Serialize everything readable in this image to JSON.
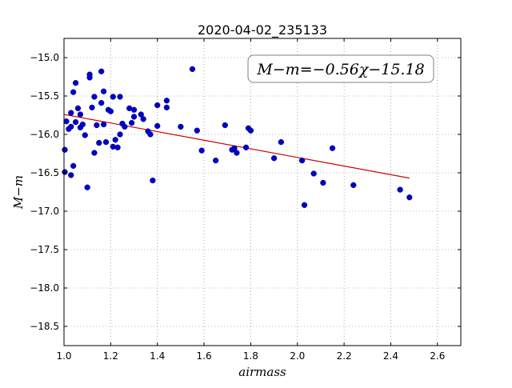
{
  "chart_data": {
    "type": "scatter",
    "title": "2020-04-02_235133",
    "xlabel": "airmass",
    "ylabel": "M−m",
    "xlim": [
      1.0,
      2.7
    ],
    "ylim": [
      -18.75,
      -14.75
    ],
    "y_inverted": true,
    "grid": true,
    "x_ticks": [
      "1.0",
      "1.2",
      "1.4",
      "1.6",
      "1.8",
      "2.0",
      "2.2",
      "2.4",
      "2.6"
    ],
    "x_tick_values": [
      1.0,
      1.2,
      1.4,
      1.6,
      1.8,
      2.0,
      2.2,
      2.4,
      2.6
    ],
    "y_ticks": [
      "−15.0",
      "−15.5",
      "−16.0",
      "−16.5",
      "−17.0",
      "−17.5",
      "−18.0",
      "−18.5"
    ],
    "y_tick_values": [
      -15.0,
      -15.5,
      -16.0,
      -16.5,
      -17.0,
      -17.5,
      -18.0,
      -18.5
    ],
    "annotation": "M−m=−0.56χ−15.18",
    "fit": {
      "slope": -0.56,
      "intercept": -15.18,
      "x_range": [
        1.0,
        2.48
      ],
      "color": "#cc0000"
    },
    "points_color": "#0000cc",
    "points": [
      {
        "x": 1.0,
        "y": -16.2
      },
      {
        "x": 1.0,
        "y": -16.49
      },
      {
        "x": 1.01,
        "y": -15.83
      },
      {
        "x": 1.02,
        "y": -15.93
      },
      {
        "x": 1.03,
        "y": -16.53
      },
      {
        "x": 1.03,
        "y": -15.72
      },
      {
        "x": 1.03,
        "y": -15.9
      },
      {
        "x": 1.04,
        "y": -15.45
      },
      {
        "x": 1.04,
        "y": -16.41
      },
      {
        "x": 1.05,
        "y": -15.33
      },
      {
        "x": 1.05,
        "y": -15.84
      },
      {
        "x": 1.06,
        "y": -15.66
      },
      {
        "x": 1.07,
        "y": -15.74
      },
      {
        "x": 1.07,
        "y": -15.91
      },
      {
        "x": 1.08,
        "y": -15.87
      },
      {
        "x": 1.09,
        "y": -16.01
      },
      {
        "x": 1.1,
        "y": -16.69
      },
      {
        "x": 1.11,
        "y": -15.26
      },
      {
        "x": 1.11,
        "y": -15.22
      },
      {
        "x": 1.12,
        "y": -15.65
      },
      {
        "x": 1.13,
        "y": -16.24
      },
      {
        "x": 1.13,
        "y": -15.51
      },
      {
        "x": 1.14,
        "y": -15.88
      },
      {
        "x": 1.15,
        "y": -16.11
      },
      {
        "x": 1.16,
        "y": -15.59
      },
      {
        "x": 1.16,
        "y": -15.18
      },
      {
        "x": 1.17,
        "y": -15.44
      },
      {
        "x": 1.17,
        "y": -15.87
      },
      {
        "x": 1.18,
        "y": -16.1
      },
      {
        "x": 1.19,
        "y": -15.68
      },
      {
        "x": 1.2,
        "y": -15.7
      },
      {
        "x": 1.21,
        "y": -15.51
      },
      {
        "x": 1.21,
        "y": -16.16
      },
      {
        "x": 1.22,
        "y": -16.07
      },
      {
        "x": 1.23,
        "y": -16.17
      },
      {
        "x": 1.24,
        "y": -15.51
      },
      {
        "x": 1.24,
        "y": -16.0
      },
      {
        "x": 1.25,
        "y": -15.86
      },
      {
        "x": 1.26,
        "y": -15.9
      },
      {
        "x": 1.28,
        "y": -15.66
      },
      {
        "x": 1.29,
        "y": -15.85
      },
      {
        "x": 1.3,
        "y": -15.77
      },
      {
        "x": 1.3,
        "y": -15.68
      },
      {
        "x": 1.33,
        "y": -15.74
      },
      {
        "x": 1.34,
        "y": -15.8
      },
      {
        "x": 1.36,
        "y": -15.96
      },
      {
        "x": 1.37,
        "y": -16.0
      },
      {
        "x": 1.38,
        "y": -16.6
      },
      {
        "x": 1.4,
        "y": -15.89
      },
      {
        "x": 1.4,
        "y": -15.62
      },
      {
        "x": 1.44,
        "y": -15.56
      },
      {
        "x": 1.44,
        "y": -15.65
      },
      {
        "x": 1.5,
        "y": -15.9
      },
      {
        "x": 1.55,
        "y": -15.15
      },
      {
        "x": 1.57,
        "y": -15.95
      },
      {
        "x": 1.59,
        "y": -16.21
      },
      {
        "x": 1.65,
        "y": -16.34
      },
      {
        "x": 1.69,
        "y": -15.88
      },
      {
        "x": 1.72,
        "y": -16.2
      },
      {
        "x": 1.73,
        "y": -16.18
      },
      {
        "x": 1.74,
        "y": -16.24
      },
      {
        "x": 1.78,
        "y": -16.17
      },
      {
        "x": 1.79,
        "y": -15.92
      },
      {
        "x": 1.8,
        "y": -15.95
      },
      {
        "x": 1.9,
        "y": -16.31
      },
      {
        "x": 1.93,
        "y": -16.1
      },
      {
        "x": 2.02,
        "y": -16.34
      },
      {
        "x": 2.03,
        "y": -16.92
      },
      {
        "x": 2.07,
        "y": -16.51
      },
      {
        "x": 2.11,
        "y": -16.63
      },
      {
        "x": 2.15,
        "y": -16.18
      },
      {
        "x": 2.24,
        "y": -16.66
      },
      {
        "x": 2.44,
        "y": -16.72
      },
      {
        "x": 2.48,
        "y": -16.82
      }
    ]
  }
}
